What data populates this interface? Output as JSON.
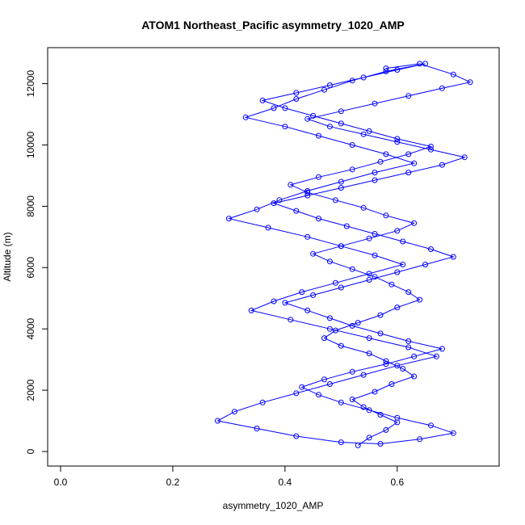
{
  "chart_data": {
    "type": "scatter",
    "title": "ATOM1 Northeast_Pacific asymmetry_1020_AMP",
    "xlabel": "asymmetry_1020_AMP",
    "ylabel": "Altitude (m)",
    "xlim": [
      0.0,
      0.75
    ],
    "ylim": [
      0,
      12700
    ],
    "xticks": [
      0.0,
      0.2,
      0.4,
      0.6
    ],
    "xtick_labels": [
      "0.0",
      "0.2",
      "0.4",
      "0.6"
    ],
    "yticks": [
      0,
      2000,
      4000,
      6000,
      8000,
      10000,
      12000
    ],
    "ytick_labels": [
      "0",
      "2000",
      "4000",
      "6000",
      "8000",
      "10000",
      "12000"
    ],
    "grid": false,
    "legend": "none",
    "mode": "lines+markers",
    "marker": "open-circle",
    "colors": {
      "series": "#0000ff",
      "axes": "#000000",
      "background": "#ffffff"
    },
    "series": [
      {
        "x": [
          0.53,
          0.55,
          0.58,
          0.6,
          0.57,
          0.54,
          0.52,
          0.56,
          0.59,
          0.63,
          0.61,
          0.58,
          0.55,
          0.5,
          0.47,
          0.49,
          0.53,
          0.57,
          0.6,
          0.64,
          0.62,
          0.59,
          0.56,
          0.52,
          0.48,
          0.45,
          0.5,
          0.55,
          0.6,
          0.63,
          0.58,
          0.54,
          0.49,
          0.44,
          0.41,
          0.46,
          0.52,
          0.57,
          0.62,
          0.66,
          0.6,
          0.55,
          0.5,
          0.45,
          0.4,
          0.36,
          0.42,
          0.48,
          0.54,
          0.6,
          0.65,
          0.58,
          0.52,
          0.47,
          0.42,
          0.38,
          0.33,
          0.4,
          0.46,
          0.52,
          0.58,
          0.63,
          0.56,
          0.5,
          0.44,
          0.39,
          0.35,
          0.3,
          0.37,
          0.44,
          0.5,
          0.56,
          0.61,
          0.55,
          0.49,
          0.43,
          0.38,
          0.34,
          0.41,
          0.48,
          0.55,
          0.62,
          0.67,
          0.6,
          0.54,
          0.48,
          0.42,
          0.36,
          0.31,
          0.28,
          0.35,
          0.42,
          0.5,
          0.57,
          0.64,
          0.7,
          0.66,
          0.6,
          0.55,
          0.5,
          0.46,
          0.43,
          0.47,
          0.52,
          0.58,
          0.63,
          0.68,
          0.62,
          0.57,
          0.52,
          0.48,
          0.44,
          0.4,
          0.45,
          0.5,
          0.55,
          0.6,
          0.65,
          0.7,
          0.66,
          0.61,
          0.56,
          0.51,
          0.46,
          0.42,
          0.38,
          0.44,
          0.5,
          0.56,
          0.62,
          0.68,
          0.72,
          0.66,
          0.6,
          0.54,
          0.48,
          0.44,
          0.5,
          0.56,
          0.62,
          0.68,
          0.73,
          0.7,
          0.64,
          0.58
        ],
        "y": [
          200,
          450,
          700,
          950,
          1200,
          1450,
          1700,
          1950,
          2200,
          2450,
          2700,
          2950,
          3200,
          3450,
          3700,
          3950,
          4200,
          4450,
          4700,
          4950,
          5200,
          5450,
          5700,
          5950,
          6200,
          6450,
          6700,
          6950,
          7200,
          7450,
          7700,
          7950,
          8200,
          8450,
          8700,
          8950,
          9200,
          9450,
          9700,
          9950,
          10200,
          10450,
          10700,
          10950,
          11200,
          11450,
          11700,
          11950,
          12200,
          12450,
          12650,
          12400,
          12100,
          11800,
          11500,
          11200,
          10900,
          10600,
          10300,
          10000,
          9700,
          9400,
          9100,
          8800,
          8500,
          8200,
          7900,
          7600,
          7300,
          7000,
          6700,
          6400,
          6100,
          5800,
          5500,
          5200,
          4900,
          4600,
          4300,
          4000,
          3700,
          3400,
          3100,
          2800,
          2500,
          2200,
          1900,
          1600,
          1300,
          1000,
          750,
          500,
          300,
          250,
          400,
          600,
          850,
          1100,
          1350,
          1600,
          1850,
          2100,
          2350,
          2600,
          2850,
          3100,
          3350,
          3600,
          3850,
          4100,
          4350,
          4600,
          4850,
          5100,
          5350,
          5600,
          5850,
          6100,
          6350,
          6600,
          6850,
          7100,
          7350,
          7600,
          7850,
          8100,
          8350,
          8600,
          8850,
          9100,
          9350,
          9600,
          9850,
          10100,
          10350,
          10600,
          10850,
          11100,
          11350,
          11600,
          11850,
          12050,
          12300,
          12650,
          12500
        ]
      }
    ]
  }
}
